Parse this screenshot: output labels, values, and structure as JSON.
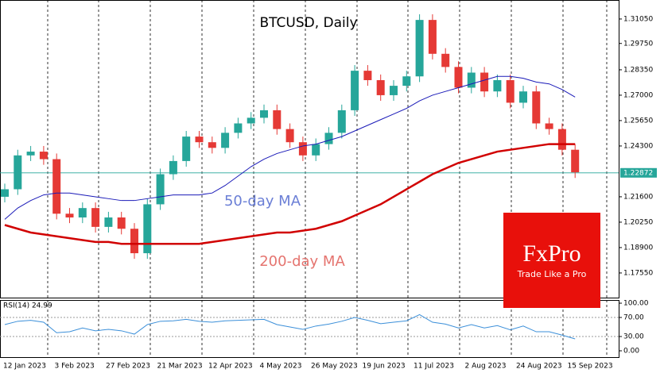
{
  "chart_data": [
    {
      "type": "candlestick",
      "title": "BTCUSD, Daily",
      "up_color": "#26a69a",
      "down_color": "#e53935",
      "open": [
        1.216,
        1.22,
        1.238,
        1.24,
        1.236,
        1.207,
        1.205,
        1.21,
        1.2,
        1.205,
        1.199,
        1.186,
        1.212,
        1.228,
        1.235,
        1.248,
        1.245,
        1.242,
        1.25,
        1.255,
        1.258,
        1.262,
        1.252,
        1.245,
        1.238,
        1.244,
        1.25,
        1.262,
        1.283,
        1.278,
        1.27,
        1.275,
        1.28,
        1.31,
        1.292,
        1.285,
        1.274,
        1.282,
        1.272,
        1.278,
        1.266,
        1.272,
        1.255,
        1.252,
        1.241
      ],
      "high": [
        1.223,
        1.241,
        1.243,
        1.243,
        1.239,
        1.21,
        1.213,
        1.213,
        1.208,
        1.208,
        1.202,
        1.215,
        1.231,
        1.238,
        1.251,
        1.251,
        1.248,
        1.253,
        1.258,
        1.261,
        1.265,
        1.265,
        1.255,
        1.248,
        1.247,
        1.253,
        1.265,
        1.286,
        1.286,
        1.281,
        1.278,
        1.283,
        1.313,
        1.313,
        1.295,
        1.288,
        1.285,
        1.285,
        1.281,
        1.281,
        1.275,
        1.275,
        1.258,
        1.255,
        1.244
      ],
      "low": [
        1.213,
        1.217,
        1.235,
        1.233,
        1.204,
        1.202,
        1.202,
        1.197,
        1.197,
        1.196,
        1.183,
        1.183,
        1.209,
        1.225,
        1.232,
        1.242,
        1.239,
        1.239,
        1.247,
        1.252,
        1.255,
        1.249,
        1.242,
        1.235,
        1.235,
        1.241,
        1.247,
        1.259,
        1.275,
        1.267,
        1.267,
        1.272,
        1.277,
        1.289,
        1.282,
        1.271,
        1.271,
        1.269,
        1.269,
        1.263,
        1.263,
        1.252,
        1.249,
        1.238,
        1.226
      ],
      "close": [
        1.22,
        1.238,
        1.24,
        1.236,
        1.207,
        1.205,
        1.21,
        1.2,
        1.205,
        1.199,
        1.186,
        1.212,
        1.228,
        1.235,
        1.248,
        1.245,
        1.242,
        1.25,
        1.255,
        1.258,
        1.262,
        1.252,
        1.245,
        1.238,
        1.244,
        1.25,
        1.262,
        1.283,
        1.278,
        1.27,
        1.275,
        1.28,
        1.31,
        1.292,
        1.285,
        1.274,
        1.282,
        1.272,
        1.278,
        1.266,
        1.272,
        1.255,
        1.252,
        1.241,
        1.229
      ],
      "series": [
        {
          "name": "50-day MA",
          "color": "#1a1ab8",
          "label_color": "#6b7fd6",
          "values": [
            1.204,
            1.21,
            1.214,
            1.217,
            1.218,
            1.218,
            1.217,
            1.216,
            1.215,
            1.214,
            1.214,
            1.215,
            1.216,
            1.217,
            1.217,
            1.217,
            1.218,
            1.222,
            1.227,
            1.232,
            1.236,
            1.239,
            1.241,
            1.243,
            1.244,
            1.246,
            1.248,
            1.251,
            1.254,
            1.257,
            1.26,
            1.263,
            1.267,
            1.27,
            1.272,
            1.274,
            1.276,
            1.278,
            1.28,
            1.28,
            1.279,
            1.277,
            1.276,
            1.273,
            1.269
          ]
        },
        {
          "name": "200-day MA",
          "color": "#d10000",
          "label_color": "#e5746f",
          "values": [
            1.201,
            1.199,
            1.197,
            1.196,
            1.195,
            1.194,
            1.193,
            1.192,
            1.192,
            1.191,
            1.191,
            1.191,
            1.191,
            1.191,
            1.191,
            1.191,
            1.192,
            1.193,
            1.194,
            1.195,
            1.196,
            1.197,
            1.197,
            1.198,
            1.199,
            1.201,
            1.203,
            1.206,
            1.209,
            1.212,
            1.216,
            1.22,
            1.224,
            1.228,
            1.231,
            1.234,
            1.236,
            1.238,
            1.24,
            1.241,
            1.242,
            1.243,
            1.244,
            1.244,
            1.244
          ]
        }
      ],
      "last_price": 1.22872,
      "last_price_color": "#26a69a",
      "ylim": [
        1.1624,
        1.3206
      ],
      "yticks": [
        {
          "value": 1.3105,
          "label": "1.31050"
        },
        {
          "value": 1.2975,
          "label": "1.29750"
        },
        {
          "value": 1.2835,
          "label": "1.28350"
        },
        {
          "value": 1.27,
          "label": "1.27000"
        },
        {
          "value": 1.2565,
          "label": "1.25650"
        },
        {
          "value": 1.243,
          "label": "1.24300"
        },
        {
          "value": 1.216,
          "label": "1.21600"
        },
        {
          "value": 1.2025,
          "label": "1.20250"
        },
        {
          "value": 1.189,
          "label": "1.18900"
        },
        {
          "value": 1.1755,
          "label": "1.17550"
        }
      ],
      "xticks": [
        "12 Jan 2023",
        "3 Feb 2023",
        "27 Feb 2023",
        "21 Mar 2023",
        "12 Apr 2023",
        "4 May 2023",
        "26 May 2023",
        "19 Jun 2023",
        "11 Jul 2023",
        "2 Aug 2023",
        "24 Aug 2023",
        "15 Sep 2023"
      ],
      "logo": {
        "brand": "FxPro",
        "tagline": "Trade Like a Pro",
        "color": "#e8100b"
      }
    },
    {
      "type": "line",
      "title": "RSI(14) 24.99",
      "color": "#3b8fd9",
      "values": [
        55,
        62,
        64,
        60,
        38,
        40,
        48,
        42,
        45,
        42,
        35,
        55,
        62,
        63,
        66,
        62,
        60,
        63,
        64,
        65,
        66,
        55,
        50,
        45,
        52,
        56,
        62,
        70,
        64,
        57,
        60,
        63,
        76,
        60,
        56,
        48,
        55,
        48,
        53,
        44,
        52,
        40,
        40,
        33,
        25
      ],
      "ylim": [
        -13.3,
        106.7
      ],
      "yticks": [
        {
          "value": 100,
          "label": "100.00"
        },
        {
          "value": 70,
          "label": "70.00"
        },
        {
          "value": 30,
          "label": "30.00"
        },
        {
          "value": 0,
          "label": "0.00"
        }
      ],
      "levels": [
        70,
        30
      ]
    }
  ]
}
